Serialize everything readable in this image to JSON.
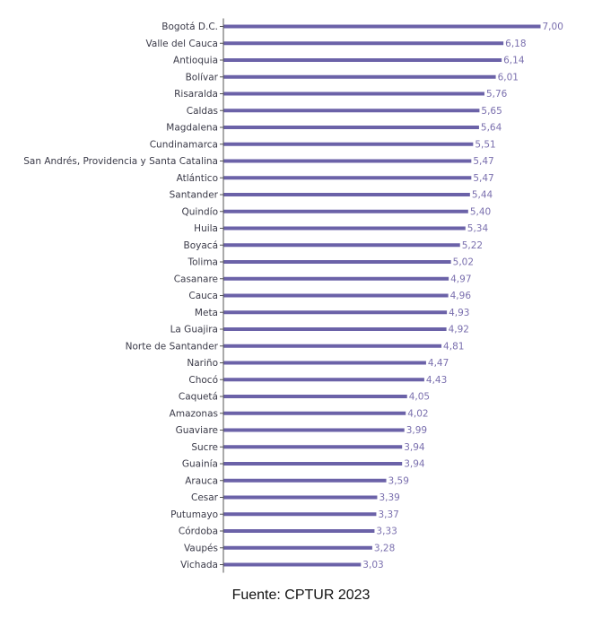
{
  "chart_data": {
    "type": "bar",
    "orientation": "horizontal",
    "categories": [
      "Bogotá D.C.",
      "Valle del Cauca",
      "Antioquia",
      "Bolívar",
      "Risaralda",
      "Caldas",
      "Magdalena",
      "Cundinamarca",
      "San Andrés, Providencia y Santa Catalina",
      "Atlántico",
      "Santander",
      "Quindío",
      "Huila",
      "Boyacá",
      "Tolima",
      "Casanare",
      "Cauca",
      "Meta",
      "La Guajira",
      "Norte de Santander",
      "Nariño",
      "Chocó",
      "Caquetá",
      "Amazonas",
      "Guaviare",
      "Sucre",
      "Guainía",
      "Arauca",
      "Cesar",
      "Putumayo",
      "Córdoba",
      "Vaupés",
      "Vichada"
    ],
    "values": [
      7.0,
      6.18,
      6.14,
      6.01,
      5.76,
      5.65,
      5.64,
      5.51,
      5.47,
      5.47,
      5.44,
      5.4,
      5.34,
      5.22,
      5.02,
      4.97,
      4.96,
      4.93,
      4.92,
      4.81,
      4.47,
      4.43,
      4.05,
      4.02,
      3.99,
      3.94,
      3.94,
      3.59,
      3.39,
      3.37,
      3.33,
      3.28,
      3.03
    ],
    "value_labels": [
      "7,00",
      "6,18",
      "6,14",
      "6,01",
      "5,76",
      "5,65",
      "5,64",
      "5,51",
      "5,47",
      "5,47",
      "5,44",
      "5,40",
      "5,34",
      "5,22",
      "5,02",
      "4,97",
      "4,96",
      "4,93",
      "4,92",
      "4,81",
      "4,47",
      "4,43",
      "4,05",
      "4,02",
      "3,99",
      "3,94",
      "3,94",
      "3,59",
      "3,39",
      "3,37",
      "3,33",
      "3,28",
      "3,03"
    ],
    "xlim": [
      0,
      7
    ],
    "grid": false,
    "bar_color": "#6b62a8",
    "value_label_color": "#7a6fae"
  },
  "source_note": "Fuente: CPTUR 2023"
}
